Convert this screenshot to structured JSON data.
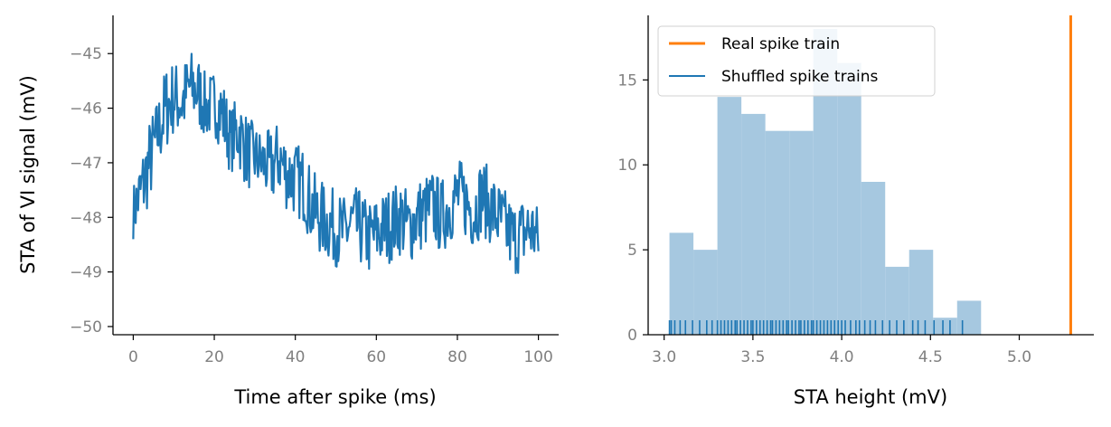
{
  "colors": {
    "blue": "#1f77b4",
    "orange": "#ff7f0e",
    "hist_fill": "#a6c8e0",
    "tick_text": "#808080"
  },
  "chart_data": [
    {
      "type": "line",
      "xlabel": "Time after spike (ms)",
      "ylabel": "STA of VI signal (mV)",
      "xlim": [
        -5,
        105
      ],
      "ylim": [
        -50.15,
        -44.3
      ],
      "xticks": [
        0,
        20,
        40,
        60,
        80,
        100
      ],
      "xtick_labels": [
        "0",
        "20",
        "40",
        "60",
        "80",
        "100"
      ],
      "yticks": [
        -50,
        -49,
        -48,
        -47,
        -46,
        -45
      ],
      "ytick_labels": [
        "−50",
        "−49",
        "−48",
        "−47",
        "−46",
        "−45"
      ],
      "grid": false,
      "series": [
        {
          "color": "#1f77b4",
          "x": [
            0,
            2,
            4,
            6,
            8,
            10,
            12,
            14,
            16,
            18,
            20,
            22,
            24,
            26,
            28,
            30,
            32,
            34,
            36,
            38,
            40,
            42,
            44,
            46,
            48,
            50,
            52,
            54,
            56,
            58,
            60,
            62,
            64,
            66,
            68,
            70,
            72,
            74,
            76,
            78,
            80,
            82,
            84,
            86,
            88,
            90,
            92,
            94,
            96,
            98,
            100
          ],
          "y_mean": [
            -47.9,
            -47.5,
            -47.0,
            -46.5,
            -46.0,
            -45.8,
            -45.9,
            -45.6,
            -45.7,
            -46.0,
            -45.9,
            -46.1,
            -46.6,
            -46.4,
            -46.8,
            -46.9,
            -47.0,
            -47.1,
            -46.9,
            -47.2,
            -47.3,
            -47.4,
            -47.8,
            -48.0,
            -48.1,
            -48.2,
            -48.3,
            -48.1,
            -48.2,
            -48.4,
            -48.3,
            -48.2,
            -48.1,
            -48.0,
            -48.2,
            -48.0,
            -47.9,
            -47.8,
            -48.0,
            -47.8,
            -47.6,
            -47.7,
            -47.9,
            -47.6,
            -47.8,
            -48.0,
            -48.2,
            -48.4,
            -48.3,
            -48.2,
            -48.4
          ],
          "y_spread": [
            0.5,
            0.7,
            0.8,
            0.7,
            0.8,
            0.7,
            0.7,
            0.7,
            0.7,
            0.6,
            0.6,
            0.7,
            0.6,
            0.7,
            0.7,
            0.6,
            0.6,
            0.7,
            0.7,
            0.7,
            0.7,
            0.7,
            0.7,
            0.7,
            0.7,
            0.7,
            0.7,
            0.7,
            0.7,
            0.7,
            0.7,
            0.7,
            0.7,
            0.7,
            0.7,
            0.7,
            0.7,
            0.7,
            0.7,
            0.7,
            0.7,
            0.7,
            0.7,
            0.7,
            0.7,
            0.7,
            0.7,
            0.7,
            0.7,
            0.7,
            0.6
          ],
          "point_count": 500
        }
      ]
    },
    {
      "type": "histogram",
      "xlabel": "STA height (mV)",
      "ylabel": "",
      "xlim": [
        2.91,
        5.42
      ],
      "ylim": [
        0,
        18.8
      ],
      "xticks": [
        3.0,
        3.5,
        4.0,
        4.5,
        5.0
      ],
      "xtick_labels": [
        "3.0",
        "3.5",
        "4.0",
        "4.5",
        "5.0"
      ],
      "yticks": [
        0,
        5,
        10,
        15
      ],
      "ytick_labels": [
        "0",
        "5",
        "10",
        "15"
      ],
      "grid": false,
      "bin_edges": [
        3.03,
        3.165,
        3.3,
        3.435,
        3.57,
        3.705,
        3.84,
        3.975,
        4.11,
        4.245,
        4.38,
        4.515,
        4.65
      ],
      "counts": [
        6,
        5,
        14,
        13,
        12,
        12,
        18,
        16,
        9,
        4,
        5,
        1,
        2
      ],
      "rug_values": [
        3.03,
        3.04,
        3.06,
        3.09,
        3.12,
        3.16,
        3.2,
        3.24,
        3.27,
        3.3,
        3.32,
        3.34,
        3.36,
        3.38,
        3.4,
        3.41,
        3.43,
        3.45,
        3.47,
        3.49,
        3.5,
        3.52,
        3.54,
        3.56,
        3.58,
        3.6,
        3.61,
        3.63,
        3.65,
        3.67,
        3.69,
        3.7,
        3.72,
        3.74,
        3.76,
        3.77,
        3.79,
        3.81,
        3.83,
        3.84,
        3.86,
        3.88,
        3.9,
        3.92,
        3.94,
        3.96,
        3.98,
        4.0,
        4.02,
        4.05,
        4.08,
        4.1,
        4.13,
        4.16,
        4.19,
        4.23,
        4.27,
        4.31,
        4.35,
        4.4,
        4.43,
        4.47,
        4.52,
        4.57,
        4.61,
        4.68
      ],
      "real_value": 5.29,
      "legend": {
        "placement": "upper-left",
        "entries": [
          {
            "label": "Real spike train",
            "color": "#ff7f0e"
          },
          {
            "label": "Shuffled spike trains",
            "color": "#1f77b4"
          }
        ]
      }
    }
  ]
}
